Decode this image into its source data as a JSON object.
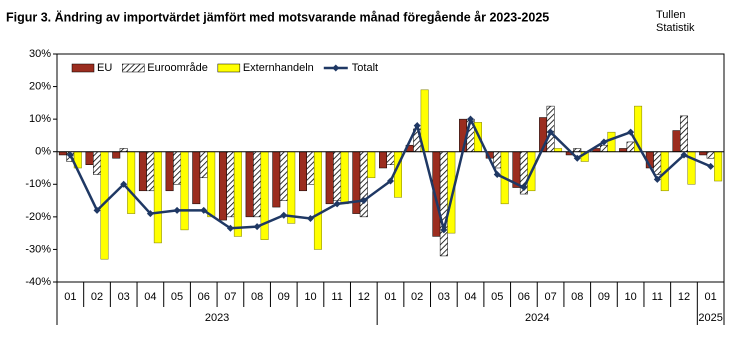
{
  "chart_data": {
    "type": "bar",
    "title": "Figur 3. Ändring av importvärdet jämfört med motsvarande månad föregående år 2023-2025",
    "source": [
      "Tullen",
      "Statistik"
    ],
    "categories": [
      "01",
      "02",
      "03",
      "04",
      "05",
      "06",
      "07",
      "08",
      "09",
      "10",
      "11",
      "12",
      "01",
      "02",
      "03",
      "04",
      "05",
      "06",
      "07",
      "08",
      "09",
      "10",
      "11",
      "12",
      "01"
    ],
    "groups": [
      "2023",
      "2024",
      "2025"
    ],
    "series": [
      {
        "name": "EU",
        "color": "#9b2d1f",
        "values": [
          -1,
          -4,
          -2,
          -12,
          -12,
          -16,
          -21,
          -20,
          -17,
          -12,
          -16,
          -19,
          -5,
          2,
          -26,
          10,
          -2,
          -11,
          10.5,
          -1,
          1,
          1,
          -5,
          6.5,
          -1
        ]
      },
      {
        "name": "Euroområde",
        "color": "#ffffff",
        "hatch": true,
        "values": [
          -3,
          -7,
          1,
          -12,
          -10,
          -8,
          -20,
          -20,
          -15,
          -10,
          -15,
          -20,
          -4,
          7,
          -32,
          10,
          -5,
          -13,
          14,
          1,
          2,
          3,
          -7,
          11,
          -2
        ]
      },
      {
        "name": "Externhandeln",
        "color": "#ffff00",
        "values": [
          -5,
          -33,
          -19,
          -28,
          -24,
          -20,
          -26,
          -27,
          -22,
          -30,
          -16,
          -8,
          -14,
          19,
          -25,
          9,
          -16,
          -12,
          1,
          -3,
          6,
          14,
          -12,
          -10,
          -9
        ]
      },
      {
        "name": "Totalt",
        "kind": "line",
        "color": "#1f3864",
        "values": [
          -1,
          -18,
          -10,
          -19,
          -18,
          -18,
          -23.5,
          -23,
          -19.5,
          -20.5,
          -16,
          -15,
          -9,
          8,
          -24,
          10,
          -7,
          -11,
          6,
          -2,
          3,
          6,
          -8.5,
          -1,
          -4.5
        ]
      }
    ],
    "ylim": [
      -40,
      30
    ],
    "yticks": [
      {
        "value": -40,
        "label": "-40%"
      },
      {
        "value": -30,
        "label": "-30%"
      },
      {
        "value": -20,
        "label": "-20%"
      },
      {
        "value": -10,
        "label": "-10%"
      },
      {
        "value": 0,
        "label": "0%"
      },
      {
        "value": 10,
        "label": "10%"
      },
      {
        "value": 20,
        "label": "20%"
      },
      {
        "value": 30,
        "label": "30%"
      }
    ],
    "grid": false,
    "legend": "top-left"
  }
}
